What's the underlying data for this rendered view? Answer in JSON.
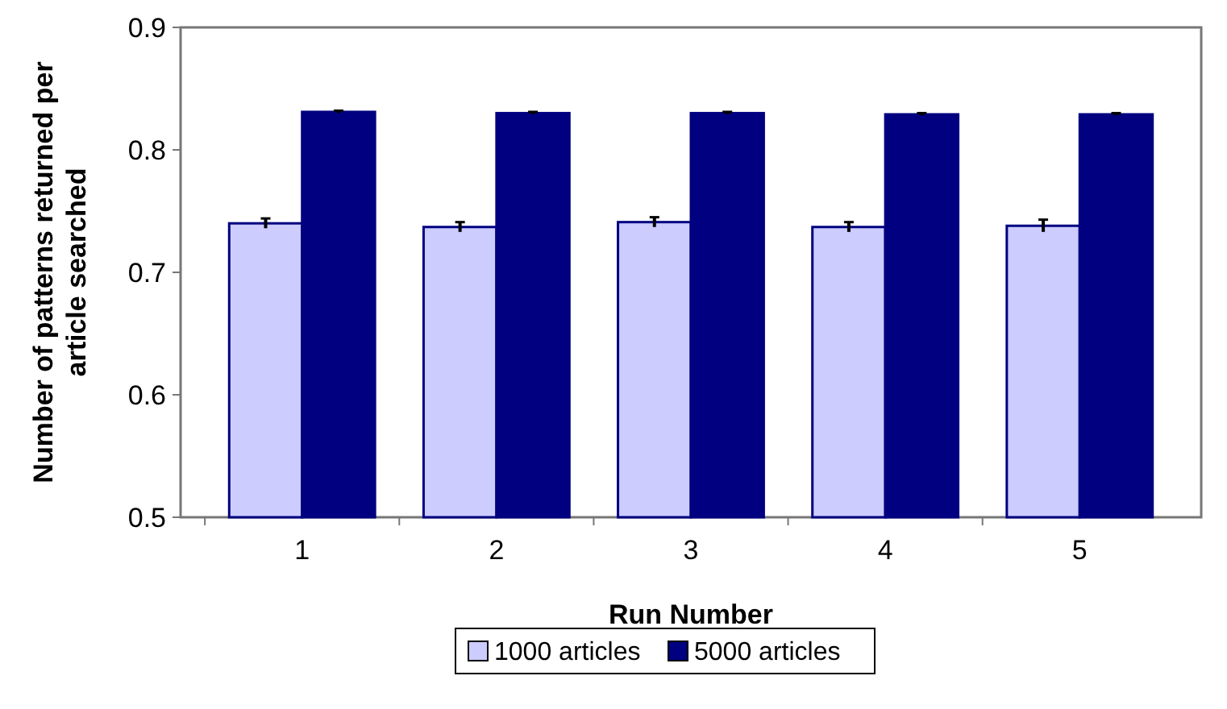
{
  "chart_data": {
    "type": "bar",
    "xlabel": "Run Number",
    "ylabel": "Number of patterns returned per article searched",
    "categories": [
      "1",
      "2",
      "3",
      "4",
      "5"
    ],
    "series": [
      {
        "name": "1000 articles",
        "color": "#ccccff",
        "values": [
          0.74,
          0.737,
          0.741,
          0.737,
          0.738
        ],
        "errors": [
          0.004,
          0.004,
          0.004,
          0.004,
          0.005
        ]
      },
      {
        "name": "5000 articles",
        "color": "#000080",
        "values": [
          0.831,
          0.83,
          0.83,
          0.829,
          0.829
        ],
        "errors": [
          0.001,
          0.001,
          0.001,
          0.001,
          0.001
        ]
      }
    ],
    "ylim": [
      0.5,
      0.9
    ],
    "yticks": [
      0.5,
      0.6,
      0.7,
      0.8,
      0.9
    ],
    "grid": false,
    "legend": "bottom"
  }
}
